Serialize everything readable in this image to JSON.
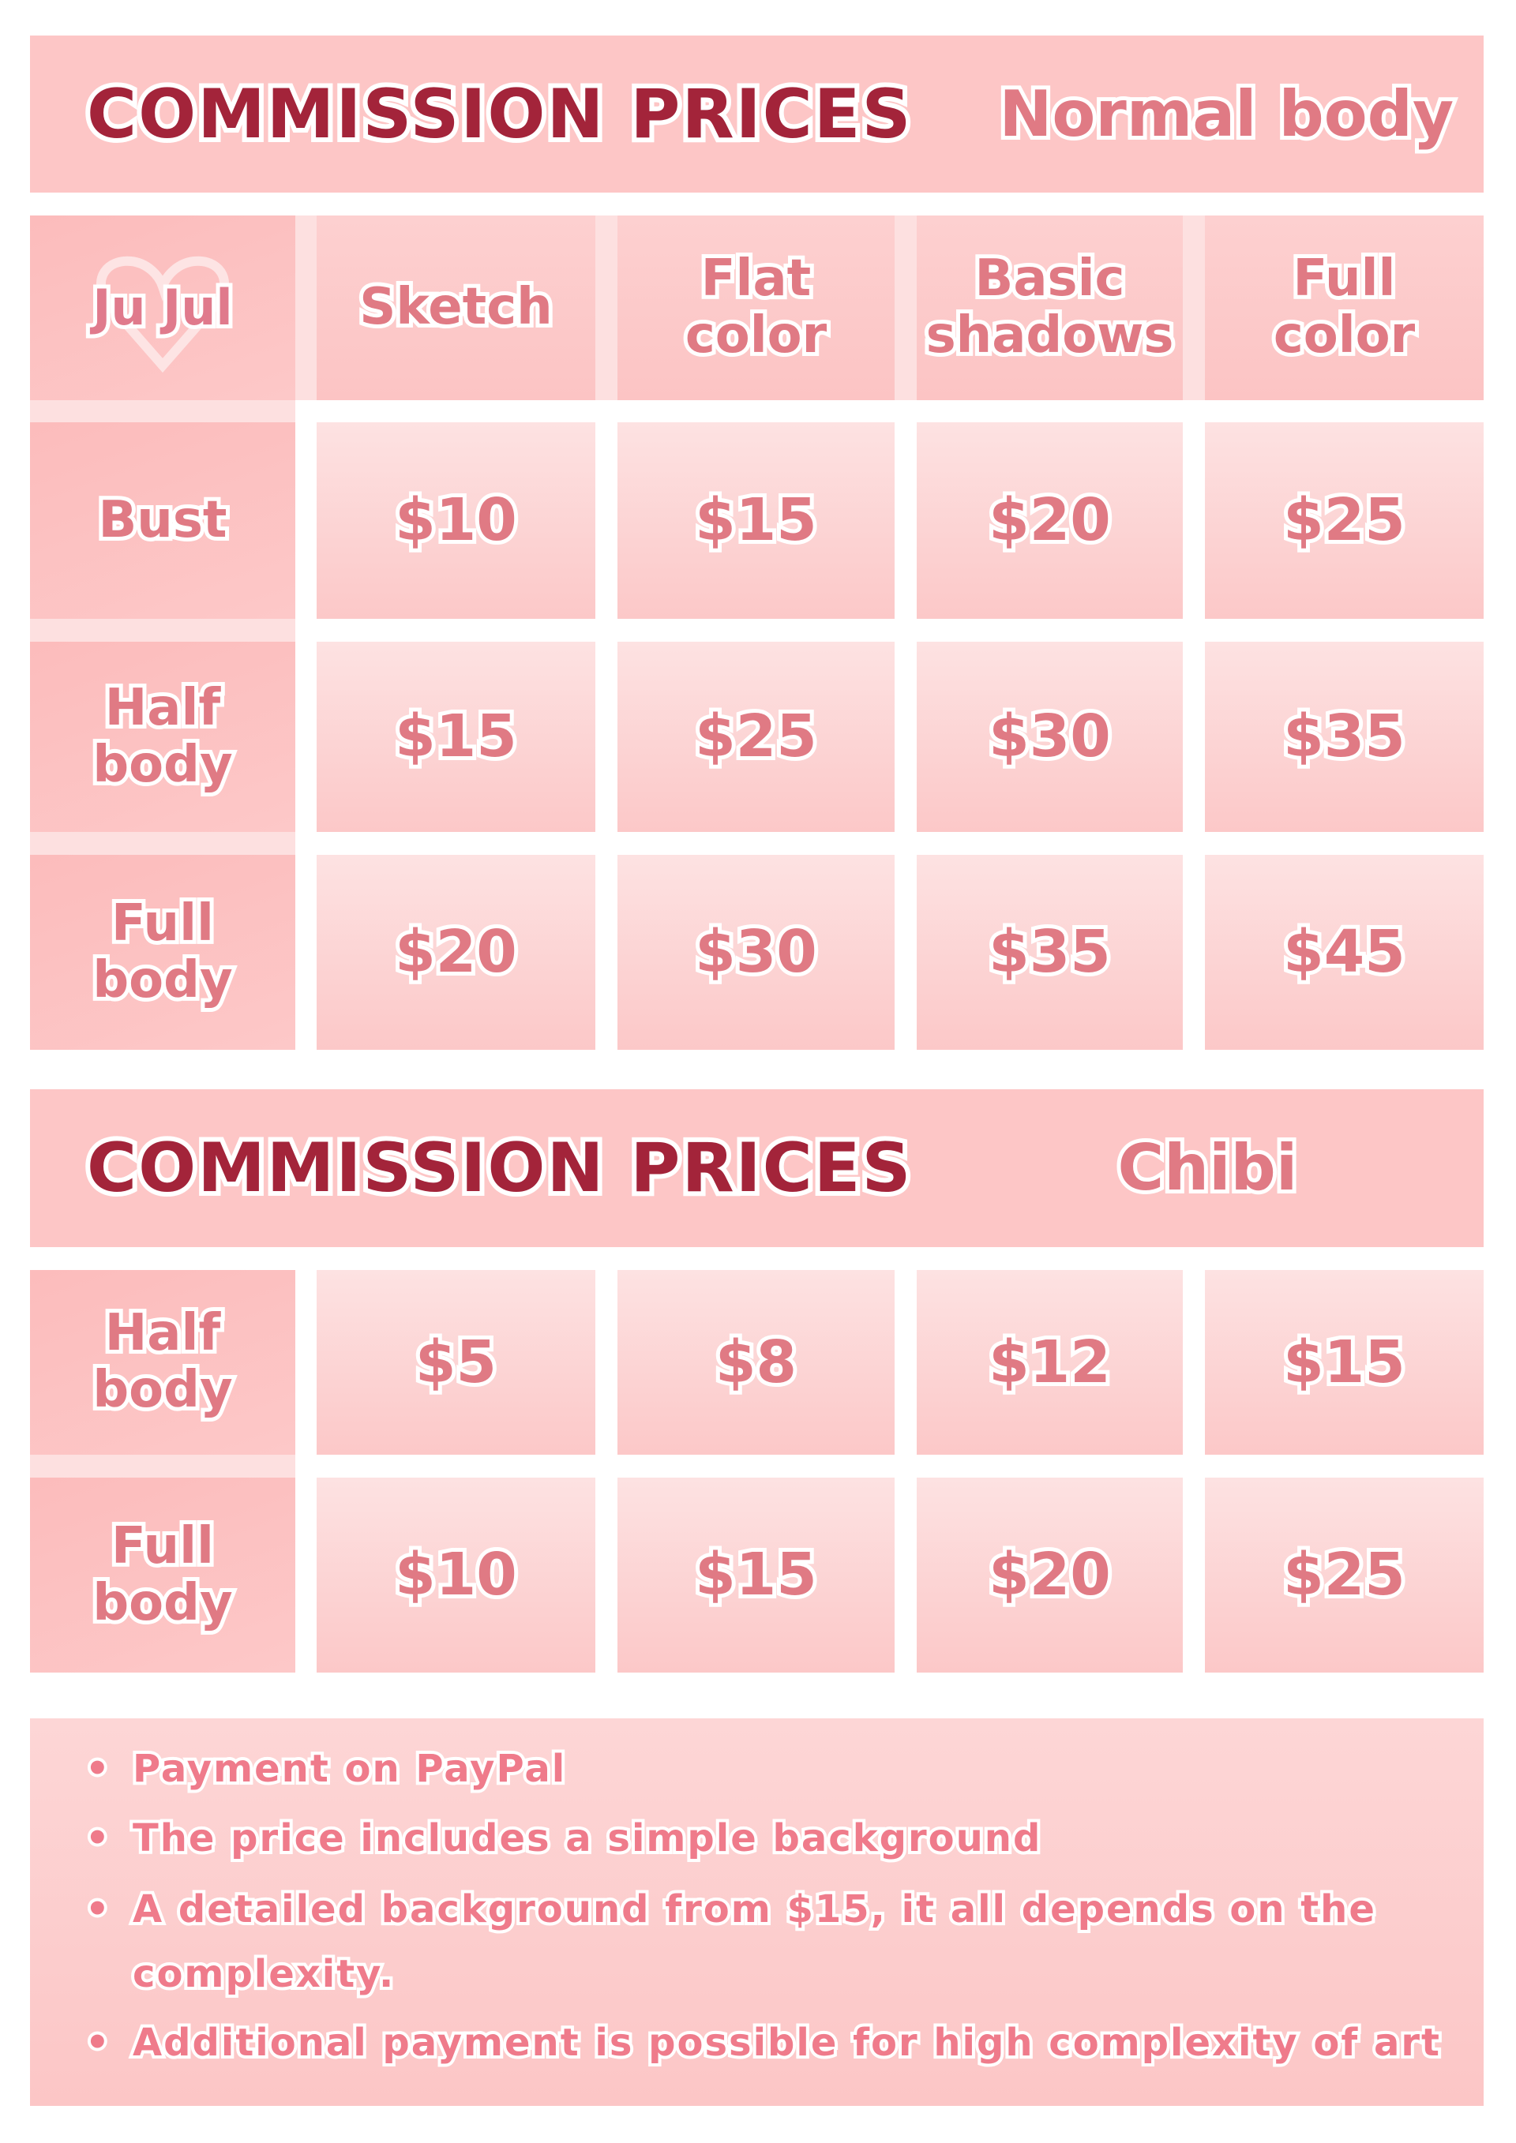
{
  "sections": [
    {
      "title": "COMMISSION PRICES",
      "subtitle": "Normal body"
    },
    {
      "title": "COMMISSION PRICES",
      "subtitle": "Chibi"
    }
  ],
  "logo_text": "Ju Jul",
  "columns": [
    "Sketch",
    "Flat color",
    "Basic shadows",
    "Full color"
  ],
  "normal_rows": [
    {
      "label": "Bust",
      "prices": [
        "$10",
        "$15",
        "$20",
        "$25"
      ]
    },
    {
      "label": "Half body",
      "prices": [
        "$15",
        "$25",
        "$30",
        "$35"
      ]
    },
    {
      "label": "Full body",
      "prices": [
        "$20",
        "$30",
        "$35",
        "$45"
      ]
    }
  ],
  "chibi_rows": [
    {
      "label": "Half body",
      "prices": [
        "$5",
        "$8",
        "$12",
        "$15"
      ]
    },
    {
      "label": "Full body",
      "prices": [
        "$10",
        "$15",
        "$20",
        "$25"
      ]
    }
  ],
  "notes": [
    "Payment on PayPal",
    "The price includes a simple background",
    "A detailed background from $15, it all depends on the complexity.",
    "Additional payment is possible for high complexity of art"
  ],
  "colors": {
    "title": "#a3243a",
    "text": "#e07a84",
    "panel": "#fdc6c6"
  }
}
